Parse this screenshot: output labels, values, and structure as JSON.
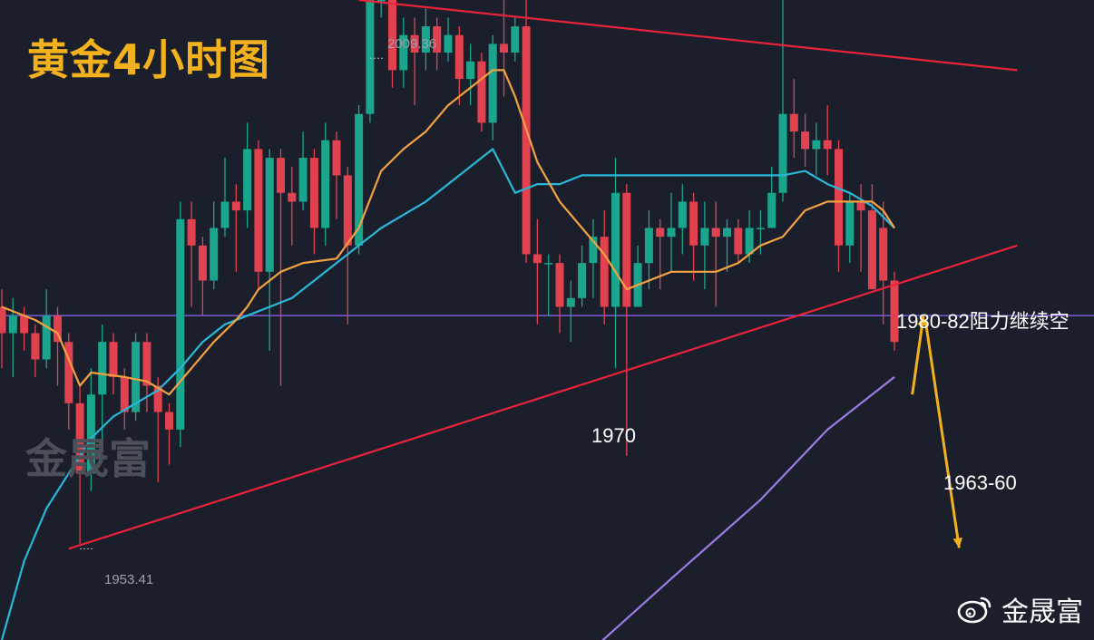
{
  "title": "黄金4小时图",
  "watermark": "金晟富",
  "brand": "金晟富",
  "annotations": {
    "high": "2009.36",
    "low": "1953.41",
    "support": "1970",
    "resistance": "1980-82阻力继续空",
    "target": "1963-60"
  },
  "colors": {
    "background": "#1b1f2c",
    "bull": "#1aa68c",
    "bear": "#e0434f",
    "ma_short": "#f4a142",
    "ma_mid": "#2bb7d8",
    "ma_long": "#9b7ce4",
    "trendline": "#e8233a",
    "horizontal": "#7a5bd8",
    "arrow": "#f3b21d"
  },
  "chart_data": {
    "type": "candlestick",
    "ylim": [
      1943,
      2016
    ],
    "levels": {
      "horizontal": 1980
    },
    "candles": [
      [
        1981,
        1978,
        1983,
        1974
      ],
      [
        1978,
        1980,
        1982,
        1973
      ],
      [
        1980,
        1978,
        1981,
        1976
      ],
      [
        1978,
        1975,
        1979,
        1973
      ],
      [
        1975,
        1980,
        1983,
        1974
      ],
      [
        1980,
        1977,
        1981,
        1972
      ],
      [
        1977,
        1970,
        1978,
        1967
      ],
      [
        1970,
        1962,
        1972,
        1954
      ],
      [
        1962,
        1971,
        1974,
        1960
      ],
      [
        1971,
        1977,
        1979,
        1965
      ],
      [
        1977,
        1973,
        1978,
        1971
      ],
      [
        1973,
        1969,
        1974,
        1967
      ],
      [
        1969,
        1977,
        1978,
        1968
      ],
      [
        1977,
        1972,
        1978,
        1969
      ],
      [
        1972,
        1969,
        1973,
        1961
      ],
      [
        1969,
        1967,
        1970,
        1963
      ],
      [
        1967,
        1991,
        1993,
        1965
      ],
      [
        1991,
        1988,
        1993,
        1981
      ],
      [
        1988,
        1984,
        1989,
        1980
      ],
      [
        1984,
        1990,
        1993,
        1983
      ],
      [
        1990,
        1993,
        1998,
        1989
      ],
      [
        1993,
        1992,
        1995,
        1985
      ],
      [
        1992,
        1999,
        2002,
        1990
      ],
      [
        1999,
        1985,
        2000,
        1983
      ],
      [
        1985,
        1998,
        1999,
        1976
      ],
      [
        1998,
        1994,
        1999,
        1972
      ],
      [
        1994,
        1993,
        1997,
        1988
      ],
      [
        1993,
        1998,
        2001,
        1992
      ],
      [
        1998,
        1990,
        1999,
        1987
      ],
      [
        1990,
        2000,
        2002,
        1988
      ],
      [
        2000,
        1996,
        2001,
        1991
      ],
      [
        1996,
        1988,
        1997,
        1979
      ],
      [
        1988,
        2003,
        2004,
        1987
      ],
      [
        2003,
        2016,
        2017,
        2002
      ],
      [
        2016,
        2016,
        2017,
        2014
      ],
      [
        2016,
        2008,
        2017,
        2006
      ],
      [
        2008,
        2012,
        2014,
        2006
      ],
      [
        2012,
        2010,
        2014,
        2004
      ],
      [
        2010,
        2013,
        2015,
        2008
      ],
      [
        2013,
        2010,
        2014,
        2008
      ],
      [
        2010,
        2012,
        2014,
        2009
      ],
      [
        2012,
        2007,
        2013,
        2004
      ],
      [
        2007,
        2009,
        2011,
        2004
      ],
      [
        2009,
        2002,
        2010,
        2001
      ],
      [
        2002,
        2011,
        2012,
        2000
      ],
      [
        2011,
        2010,
        2016,
        2005
      ],
      [
        2010,
        2013,
        2014,
        2009
      ],
      [
        2013,
        1987,
        2023,
        1986
      ],
      [
        1987,
        1986,
        1991,
        1979
      ],
      [
        1986,
        1986,
        1987,
        1980
      ],
      [
        1986,
        1981,
        1987,
        1978
      ],
      [
        1981,
        1982,
        1984,
        1977
      ],
      [
        1982,
        1986,
        1988,
        1981
      ],
      [
        1986,
        1989,
        1991,
        1982
      ],
      [
        1989,
        1981,
        1992,
        1979
      ],
      [
        1981,
        1994,
        1998,
        1974
      ],
      [
        1994,
        1981,
        1995,
        1964
      ],
      [
        1981,
        1986,
        1988,
        1982
      ],
      [
        1986,
        1990,
        1992,
        1983
      ],
      [
        1990,
        1989,
        1991,
        1983
      ],
      [
        1989,
        1990,
        1994,
        1985
      ],
      [
        1990,
        1993,
        1995,
        1987
      ],
      [
        1993,
        1988,
        1994,
        1984
      ],
      [
        1988,
        1990,
        1993,
        1983
      ],
      [
        1990,
        1989,
        1993,
        1981
      ],
      [
        1989,
        1990,
        1991,
        1985
      ],
      [
        1990,
        1987,
        1991,
        1986
      ],
      [
        1987,
        1990,
        1992,
        1986
      ],
      [
        1990,
        1990,
        1992,
        1987
      ],
      [
        1990,
        1994,
        1997,
        1991
      ],
      [
        1994,
        2003,
        2016,
        1993
      ],
      [
        2003,
        2001,
        2007,
        1998
      ],
      [
        2001,
        1999,
        2003,
        1997
      ],
      [
        1999,
        2000,
        2002,
        1996
      ],
      [
        2000,
        1999,
        2004,
        1996
      ],
      [
        1999,
        1988,
        2000,
        1985
      ],
      [
        1988,
        1993,
        1994,
        1986
      ],
      [
        1993,
        1992,
        1995,
        1985
      ],
      [
        1992,
        1983,
        1995,
        1983
      ],
      [
        1990,
        1984,
        1993,
        1979
      ],
      [
        1984,
        1977,
        1985,
        1976
      ]
    ],
    "ma_short": [
      [
        0,
        1981
      ],
      [
        3,
        1979.5
      ],
      [
        5,
        1978
      ],
      [
        7,
        1972
      ],
      [
        8,
        1973.5
      ],
      [
        11,
        1973
      ],
      [
        13,
        1972.5
      ],
      [
        15,
        1971
      ],
      [
        17,
        1974
      ],
      [
        19,
        1977
      ],
      [
        21,
        1979.5
      ],
      [
        22,
        1981
      ],
      [
        23,
        1983
      ],
      [
        25,
        1985
      ],
      [
        27,
        1986
      ],
      [
        30,
        1986.5
      ],
      [
        32,
        1990
      ],
      [
        34,
        1996.5
      ],
      [
        36,
        1999
      ],
      [
        38,
        2001
      ],
      [
        40,
        2004
      ],
      [
        42,
        2006
      ],
      [
        44,
        2008
      ],
      [
        45,
        2008
      ],
      [
        46,
        2005
      ],
      [
        48,
        1997.5
      ],
      [
        50,
        1993
      ],
      [
        52,
        1990
      ],
      [
        54,
        1987
      ],
      [
        56,
        1983
      ],
      [
        58,
        1984
      ],
      [
        60,
        1985
      ],
      [
        62,
        1985
      ],
      [
        64,
        1985
      ],
      [
        66,
        1986
      ],
      [
        68,
        1988
      ],
      [
        70,
        1989
      ],
      [
        72,
        1992
      ],
      [
        74,
        1993
      ],
      [
        76,
        1993
      ],
      [
        78,
        1993
      ],
      [
        79,
        1992
      ],
      [
        80,
        1990
      ]
    ],
    "ma_mid": [
      [
        0,
        1943
      ],
      [
        2,
        1952
      ],
      [
        4,
        1958
      ],
      [
        6,
        1962
      ],
      [
        8,
        1966
      ],
      [
        10,
        1968.5
      ],
      [
        12,
        1970
      ],
      [
        14,
        1971.5
      ],
      [
        16,
        1974
      ],
      [
        18,
        1977
      ],
      [
        20,
        1979
      ],
      [
        22,
        1980
      ],
      [
        24,
        1981
      ],
      [
        26,
        1982
      ],
      [
        28,
        1984
      ],
      [
        30,
        1986
      ],
      [
        32,
        1988
      ],
      [
        34,
        1990
      ],
      [
        36,
        1991.5
      ],
      [
        38,
        1993
      ],
      [
        40,
        1995
      ],
      [
        42,
        1997
      ],
      [
        44,
        1999
      ],
      [
        46,
        1994
      ],
      [
        48,
        1995
      ],
      [
        50,
        1995
      ],
      [
        52,
        1996
      ],
      [
        54,
        1996
      ],
      [
        56,
        1996
      ],
      [
        58,
        1996
      ],
      [
        60,
        1996
      ],
      [
        62,
        1996
      ],
      [
        64,
        1996
      ],
      [
        66,
        1996
      ],
      [
        68,
        1996
      ],
      [
        70,
        1996
      ],
      [
        72,
        1996.5
      ],
      [
        74,
        1995
      ],
      [
        76,
        1994
      ],
      [
        78,
        1992.5
      ],
      [
        80,
        1990
      ]
    ],
    "ma_long": [
      [
        53,
        1942
      ],
      [
        60,
        1950
      ],
      [
        68,
        1959
      ],
      [
        74,
        1967
      ],
      [
        80,
        1973
      ]
    ],
    "trendlines": [
      {
        "from": [
          6,
          1953.41
        ],
        "to": [
          91,
          1988
        ]
      },
      {
        "from": [
          32,
          2016
        ],
        "to": [
          91,
          2008
        ]
      }
    ]
  }
}
